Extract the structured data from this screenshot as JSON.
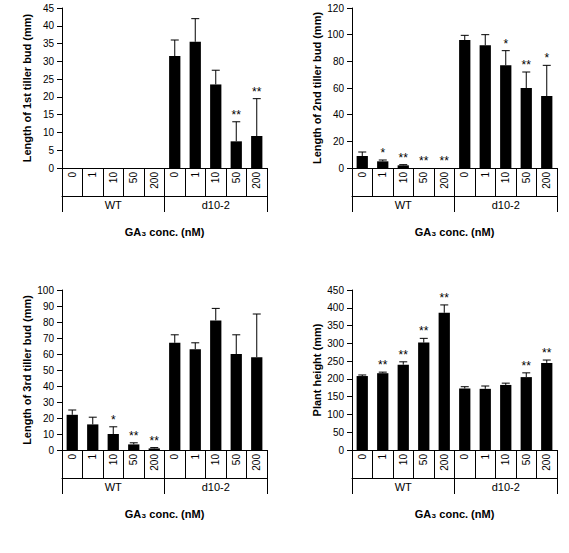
{
  "chart_data": [
    {
      "type": "bar",
      "ylabel": "Length of 1st tiller bud (mm)",
      "xlabel": "GA₃ conc. (nM)",
      "categories": [
        "0",
        "1",
        "10",
        "50",
        "200",
        "0",
        "1",
        "10",
        "50",
        "200"
      ],
      "category_groups": [
        "WT",
        "WT",
        "WT",
        "WT",
        "WT",
        "d10-2",
        "d10-2",
        "d10-2",
        "d10-2",
        "d10-2"
      ],
      "values": [
        0,
        0,
        0,
        0,
        0,
        31.5,
        35.5,
        23.5,
        7.5,
        9
      ],
      "errors": [
        0,
        0,
        0,
        0,
        0,
        4.5,
        6.5,
        4,
        5.5,
        10.5
      ],
      "annotations": [
        null,
        null,
        null,
        null,
        null,
        null,
        null,
        null,
        "**",
        "**"
      ],
      "color": "#000000",
      "ylim": [
        0,
        45
      ],
      "yticks": [
        0,
        5,
        10,
        15,
        20,
        25,
        30,
        35,
        40,
        45
      ],
      "grid": false
    },
    {
      "type": "bar",
      "ylabel": "Length of 2nd tiller bud (mm)",
      "xlabel": "GA₃ conc. (nM)",
      "categories": [
        "0",
        "1",
        "10",
        "50",
        "200",
        "0",
        "1",
        "10",
        "50",
        "200"
      ],
      "category_groups": [
        "WT",
        "WT",
        "WT",
        "WT",
        "WT",
        "d10-2",
        "d10-2",
        "d10-2",
        "d10-2",
        "d10-2"
      ],
      "values": [
        9,
        5,
        2,
        0,
        0,
        96,
        92,
        77,
        60,
        54
      ],
      "errors": [
        3,
        1,
        0.5,
        0,
        0,
        3.5,
        8,
        11,
        12,
        23
      ],
      "annotations": [
        null,
        "*",
        "**",
        "**",
        "**",
        null,
        null,
        "*",
        "**",
        "*"
      ],
      "color": "#000000",
      "ylim": [
        0,
        120
      ],
      "yticks": [
        0,
        20,
        40,
        60,
        80,
        100,
        120
      ],
      "grid": false
    },
    {
      "type": "bar",
      "ylabel": "Length of 3rd tiller bud (mm)",
      "xlabel": "GA₃ conc. (nM)",
      "categories": [
        "0",
        "1",
        "10",
        "50",
        "200",
        "0",
        "1",
        "10",
        "50",
        "200"
      ],
      "category_groups": [
        "WT",
        "WT",
        "WT",
        "WT",
        "WT",
        "d10-2",
        "d10-2",
        "d10-2",
        "d10-2",
        "d10-2"
      ],
      "values": [
        22,
        16,
        10,
        3.5,
        1,
        67,
        63,
        81,
        60,
        58
      ],
      "errors": [
        3,
        4.5,
        4.5,
        1,
        0.5,
        5,
        4,
        7.5,
        12,
        27
      ],
      "annotations": [
        null,
        null,
        "*",
        "**",
        "**",
        null,
        null,
        null,
        null,
        null
      ],
      "color": "#000000",
      "ylim": [
        0,
        100
      ],
      "yticks": [
        0,
        10,
        20,
        30,
        40,
        50,
        60,
        70,
        80,
        90,
        100
      ],
      "grid": false
    },
    {
      "type": "bar",
      "ylabel": "Plant height (mm)",
      "xlabel": "GA₃ conc. (nM)",
      "categories": [
        "0",
        "1",
        "10",
        "50",
        "200",
        "0",
        "1",
        "10",
        "50",
        "200"
      ],
      "category_groups": [
        "WT",
        "WT",
        "WT",
        "WT",
        "WT",
        "d10-2",
        "d10-2",
        "d10-2",
        "d10-2",
        "d10-2"
      ],
      "values": [
        208,
        216,
        240,
        302,
        386,
        173,
        172,
        183,
        205,
        245
      ],
      "errors": [
        3,
        3,
        8,
        12,
        22,
        5,
        8,
        5,
        12,
        8
      ],
      "annotations": [
        null,
        "**",
        "**",
        "**",
        "**",
        null,
        null,
        null,
        "**",
        "**"
      ],
      "color": "#000000",
      "ylim": [
        0,
        450
      ],
      "yticks": [
        0,
        50,
        100,
        150,
        200,
        250,
        300,
        350,
        400,
        450
      ],
      "grid": false
    }
  ]
}
